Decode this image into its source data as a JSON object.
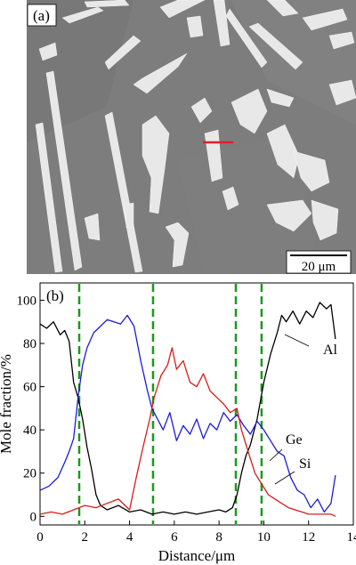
{
  "panel_a": {
    "label": "(a)",
    "scale_bar_label": "20 μm",
    "colors": {
      "matrix": "#7d7d7d",
      "particles": "#e8e8e8",
      "line_scan": "#e0202a"
    }
  },
  "panel_b": {
    "label": "(b)"
  },
  "chart_data": {
    "type": "line",
    "title": "",
    "xlabel": "Distance/μm",
    "ylabel": "Mole fraction/%",
    "xlim": [
      0,
      14
    ],
    "ylim": [
      -4,
      108
    ],
    "xticks": [
      "0",
      "2",
      "4",
      "6",
      "8",
      "10",
      "12",
      "14"
    ],
    "yticks": [
      "0",
      "20",
      "40",
      "60",
      "80",
      "100"
    ],
    "grid": false,
    "vertical_markers_x": [
      1.75,
      5.05,
      8.75,
      9.9
    ],
    "marker_color": "#1a9a1a",
    "series": [
      {
        "name": "Al",
        "color": "#000000",
        "x": [
          0,
          0.3,
          0.6,
          0.9,
          1.1,
          1.3,
          1.5,
          1.7,
          1.9,
          2.1,
          2.3,
          2.5,
          2.7,
          3.0,
          3.5,
          4.0,
          4.5,
          5.0,
          5.5,
          6.0,
          6.5,
          7.0,
          7.5,
          8.0,
          8.3,
          8.6,
          8.8,
          9.0,
          9.2,
          9.4,
          9.7,
          10.0,
          10.3,
          10.6,
          10.8,
          11.0,
          11.3,
          11.6,
          11.9,
          12.2,
          12.5,
          12.8,
          13.0,
          13.2
        ],
        "y": [
          89,
          87,
          90,
          84,
          86,
          81,
          62,
          55,
          45,
          32,
          22,
          10,
          5,
          3,
          5,
          2,
          3,
          1,
          2,
          1,
          2,
          1,
          2,
          3,
          2,
          4,
          10,
          20,
          28,
          33,
          45,
          62,
          75,
          85,
          93,
          90,
          95,
          89,
          95,
          92,
          99,
          96,
          98,
          82
        ]
      },
      {
        "name": "Ge",
        "color": "#1c1cd8",
        "x": [
          0,
          0.4,
          0.8,
          1.1,
          1.3,
          1.5,
          1.7,
          1.9,
          2.1,
          2.4,
          2.7,
          3.0,
          3.3,
          3.6,
          3.9,
          4.2,
          4.5,
          4.8,
          5.0,
          5.2,
          5.5,
          5.8,
          6.1,
          6.4,
          6.7,
          7.0,
          7.3,
          7.6,
          7.9,
          8.2,
          8.5,
          8.8,
          9.1,
          9.4,
          9.7,
          10.0,
          10.3,
          10.6,
          10.9,
          11.2,
          11.5,
          11.8,
          12.1,
          12.4,
          12.7,
          13.0,
          13.2
        ],
        "y": [
          12,
          14,
          18,
          25,
          30,
          36,
          55,
          70,
          78,
          85,
          88,
          91,
          90,
          89,
          93,
          88,
          72,
          58,
          50,
          46,
          40,
          48,
          35,
          42,
          38,
          45,
          36,
          43,
          40,
          48,
          44,
          47,
          42,
          38,
          44,
          40,
          35,
          30,
          28,
          18,
          12,
          10,
          4,
          8,
          2,
          6,
          19
        ]
      },
      {
        "name": "Si",
        "color": "#d81c1c",
        "x": [
          0,
          0.5,
          1.0,
          1.5,
          2.0,
          2.5,
          3.0,
          3.5,
          4.0,
          4.3,
          4.6,
          4.9,
          5.1,
          5.4,
          5.7,
          5.9,
          6.1,
          6.4,
          6.7,
          7.0,
          7.3,
          7.6,
          7.9,
          8.2,
          8.5,
          8.8,
          9.0,
          9.3,
          9.6,
          9.9,
          10.2,
          10.5,
          10.8,
          11.1,
          11.4,
          11.7,
          12.0,
          12.5,
          13.0,
          13.2
        ],
        "y": [
          1,
          2,
          1,
          3,
          5,
          4,
          6,
          8,
          3,
          18,
          32,
          45,
          55,
          65,
          70,
          78,
          68,
          72,
          62,
          60,
          66,
          58,
          55,
          52,
          48,
          50,
          40,
          30,
          20,
          15,
          10,
          8,
          6,
          4,
          3,
          2,
          1,
          1,
          1,
          0
        ]
      }
    ],
    "annotations": [
      {
        "text": "Al"
      },
      {
        "text": "Ge"
      },
      {
        "text": "Si"
      }
    ]
  }
}
